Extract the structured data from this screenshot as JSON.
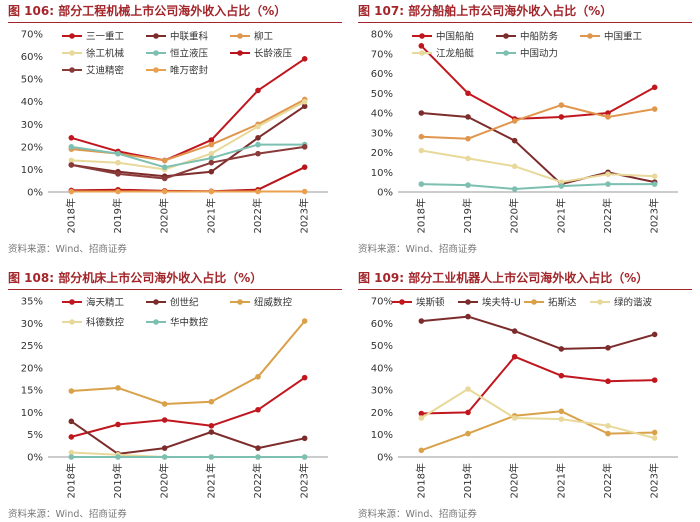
{
  "chart_data": [
    {
      "type": "line",
      "figure_label": "图 106:",
      "title": "部分工程机械上市公司海外收入占比（%）",
      "source": "资料来源：Wind、招商证券",
      "categories": [
        "2018年",
        "2019年",
        "2020年",
        "2021年",
        "2022年",
        "2023年"
      ],
      "ylim": [
        0,
        70
      ],
      "yticks": [
        0,
        10,
        20,
        30,
        40,
        50,
        60,
        70
      ],
      "ytick_labels": [
        "0%",
        "10%",
        "20%",
        "30%",
        "40%",
        "50%",
        "60%",
        "70%"
      ],
      "legend_cols": 3,
      "series": [
        {
          "name": "三一重工",
          "color": "#c0171f",
          "values": [
            24,
            18,
            14,
            23,
            45,
            59
          ]
        },
        {
          "name": "中联重科",
          "color": "#7d2c2c",
          "values": [
            12,
            9,
            7,
            9,
            24,
            38
          ]
        },
        {
          "name": "柳工",
          "color": "#e0974d",
          "values": [
            19,
            17,
            14,
            21,
            30,
            41
          ]
        },
        {
          "name": "徐工机械",
          "color": "#e8d99a",
          "values": [
            14,
            13,
            10,
            17,
            29,
            40
          ]
        },
        {
          "name": "恒立液压",
          "color": "#7dbfb0",
          "values": [
            20,
            17,
            11,
            15,
            21,
            21
          ]
        },
        {
          "name": "长龄液压",
          "color": "#b9141b",
          "values": [
            0.7,
            1,
            0.5,
            0.3,
            1,
            11
          ]
        },
        {
          "name": "艾迪精密",
          "color": "#8b3a3a",
          "values": [
            12,
            8,
            6,
            13,
            17,
            20
          ]
        },
        {
          "name": "唯万密封",
          "color": "#e9a04f",
          "values": [
            0.2,
            0.2,
            0.2,
            0.2,
            0.2,
            0.2
          ]
        }
      ]
    },
    {
      "type": "line",
      "figure_label": "图 107:",
      "title": "部分船舶上市公司海外收入占比（%）",
      "source": "资料来源：Wind、招商证券",
      "categories": [
        "2018年",
        "2019年",
        "2020年",
        "2021年",
        "2022年",
        "2023年"
      ],
      "ylim": [
        0,
        80
      ],
      "yticks": [
        0,
        10,
        20,
        30,
        40,
        50,
        60,
        70,
        80
      ],
      "ytick_labels": [
        "0%",
        "10%",
        "20%",
        "30%",
        "40%",
        "50%",
        "60%",
        "70%",
        "80%"
      ],
      "legend_cols": 3,
      "series": [
        {
          "name": "中国船舶",
          "color": "#c0171f",
          "values": [
            74,
            50,
            37,
            38,
            40,
            53
          ]
        },
        {
          "name": "中船防务",
          "color": "#7d2c2c",
          "values": [
            40,
            38,
            26,
            4,
            10,
            5
          ]
        },
        {
          "name": "中国重工",
          "color": "#e0974d",
          "values": [
            28,
            27,
            36,
            44,
            38,
            42
          ]
        },
        {
          "name": "江龙船艇",
          "color": "#e8d99a",
          "values": [
            21,
            17,
            13,
            5,
            9,
            8
          ]
        },
        {
          "name": "中国动力",
          "color": "#7dbfb0",
          "values": [
            4,
            3.5,
            1.5,
            3,
            4,
            4
          ]
        }
      ]
    },
    {
      "type": "line",
      "figure_label": "图 108:",
      "title": "部分机床上市公司海外收入占比（%）",
      "source": "资料来源：Wind、招商证券",
      "categories": [
        "2018年",
        "2019年",
        "2020年",
        "2021年",
        "2022年",
        "2023年"
      ],
      "ylim": [
        0,
        35
      ],
      "yticks": [
        0,
        5,
        10,
        15,
        20,
        25,
        30,
        35
      ],
      "ytick_labels": [
        "0%",
        "5%",
        "10%",
        "15%",
        "20%",
        "25%",
        "30%",
        "35%"
      ],
      "legend_cols": 3,
      "series": [
        {
          "name": "海天精工",
          "color": "#c0171f",
          "values": [
            4.5,
            7.3,
            8.3,
            7.0,
            10.6,
            17.8
          ]
        },
        {
          "name": "创世纪",
          "color": "#7d2c2c",
          "values": [
            8,
            0.7,
            2,
            5.6,
            2,
            4.2
          ]
        },
        {
          "name": "纽威数控",
          "color": "#d9a14a",
          "values": [
            14.8,
            15.5,
            11.9,
            12.4,
            18,
            30.5
          ]
        },
        {
          "name": "科德数控",
          "color": "#e8d99a",
          "values": [
            1,
            0.5,
            0,
            0,
            0,
            0
          ]
        },
        {
          "name": "华中数控",
          "color": "#7dbfb0",
          "values": [
            0,
            0,
            0,
            0,
            0,
            0
          ]
        }
      ]
    },
    {
      "type": "line",
      "figure_label": "图 109:",
      "title": "部分工业机器人上市公司海外收入占比（%）",
      "source": "资料来源：Wind、招商证券",
      "categories": [
        "2018年",
        "2019年",
        "2020年",
        "2021年",
        "2022年",
        "2023年"
      ],
      "ylim": [
        0,
        70
      ],
      "yticks": [
        0,
        10,
        20,
        30,
        40,
        50,
        60,
        70
      ],
      "ytick_labels": [
        "0%",
        "10%",
        "20%",
        "30%",
        "40%",
        "50%",
        "60%",
        "70%"
      ],
      "legend_cols": 4,
      "series": [
        {
          "name": "埃斯顿",
          "color": "#c0171f",
          "values": [
            19.5,
            20,
            45,
            36.5,
            34,
            34.5
          ]
        },
        {
          "name": "埃夫特-U",
          "color": "#7d2c2c",
          "values": [
            61,
            63,
            56.5,
            48.5,
            49,
            55
          ]
        },
        {
          "name": "拓斯达",
          "color": "#d9a14a",
          "values": [
            3,
            10.5,
            18.5,
            20.5,
            10.5,
            11
          ]
        },
        {
          "name": "绿的谐波",
          "color": "#e8d99a",
          "values": [
            17.5,
            30.5,
            17.5,
            17,
            14,
            8.5
          ]
        }
      ]
    }
  ]
}
